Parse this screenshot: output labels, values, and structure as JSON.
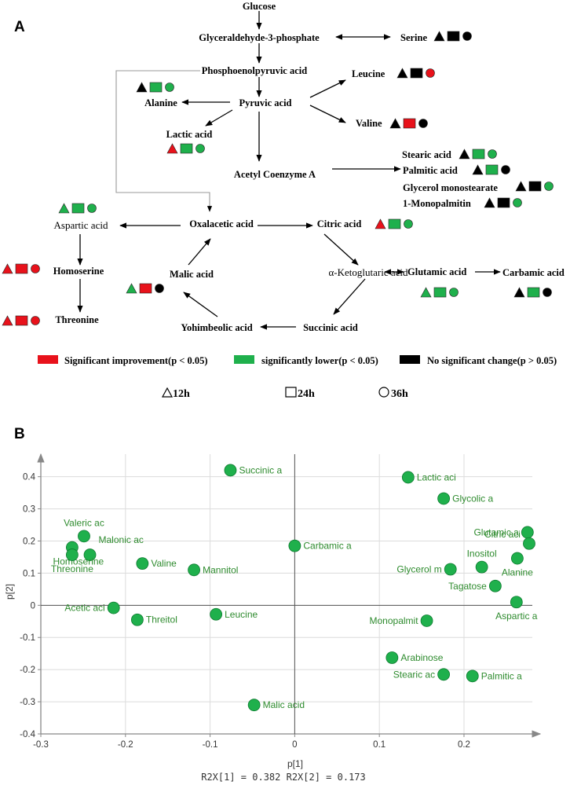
{
  "panel_a": {
    "label": "A",
    "nodes": {
      "glucose": "Glucose",
      "g3p": "Glyceraldehyde-3-phosphate",
      "pep": "Phosphoenolpyruvic acid",
      "pyruvic": "Pyruvic acid",
      "acetyl": "Acetyl Coenzyme A",
      "oxaloacetic": "Oxalacetic acid",
      "citric": "Citric acid",
      "akg": "α-Ketoglutaric acid",
      "succinic": "Succinic acid",
      "yohimbeolic": "Yohimbeolic acid",
      "malic": "Malic acid",
      "aspartic": "Aspartic acid",
      "homoserine": "Homoserine",
      "threonine": "Threonine",
      "serine": "Serine",
      "leucine": "Leucine",
      "valine": "Valine",
      "alanine": "Alanine",
      "lactic": "Lactic acid",
      "stearic": "Stearic acid",
      "palmitic": "Palmitic acid",
      "glycerol": "Glycerol monostearate",
      "monopalmitin": "1-Monopalmitin",
      "glutamic": "Glutamic acid",
      "carbamic": "Carbamic acid"
    },
    "colors": {
      "red": "#e8121b",
      "green": "#1fb04c",
      "black": "#000000"
    },
    "markers": {
      "serine": [
        "black",
        "black",
        "black"
      ],
      "leucine": [
        "black",
        "black",
        "red"
      ],
      "valine": [
        "black",
        "red",
        "black"
      ],
      "alanine": [
        "black",
        "green",
        "green"
      ],
      "lactic": [
        "red",
        "green",
        "green"
      ],
      "stearic": [
        "black",
        "green",
        "green"
      ],
      "palmitic": [
        "black",
        "green",
        "black"
      ],
      "glycerol": [
        "black",
        "black",
        "green"
      ],
      "monopalmitin": [
        "black",
        "black",
        "green"
      ],
      "aspartic": [
        "green",
        "green",
        "green"
      ],
      "citric": [
        "red",
        "green",
        "green"
      ],
      "homoserine": [
        "red",
        "red",
        "red"
      ],
      "threonine": [
        "red",
        "red",
        "red"
      ],
      "malic": [
        "green",
        "red",
        "black"
      ],
      "glutamic": [
        "green",
        "green",
        "green"
      ],
      "carbamic": [
        "black",
        "green",
        "black"
      ]
    },
    "legend": {
      "improve": "Significant improvement(p < 0.05)",
      "lower": "significantly lower(p < 0.05)",
      "nochange": "No significant change(p > 0.05)",
      "t12": "12h",
      "t24": "24h",
      "t36": "36h"
    }
  },
  "panel_b": {
    "label": "B",
    "chart_data": {
      "type": "scatter",
      "xlabel": "p[1]",
      "ylabel": "p[2]",
      "footer": "R2X[1] = 0.382 R2X[2] = 0.173",
      "xlim": [
        -0.3,
        0.29
      ],
      "ylim": [
        -0.4,
        0.47
      ],
      "xticks": [
        -0.3,
        -0.2,
        -0.1,
        0,
        0.1,
        0.2
      ],
      "xtick_labels": [
        "-0.3",
        "-0.2",
        "-0.1",
        "0",
        "0.1",
        "0.2"
      ],
      "yticks": [
        -0.4,
        -0.3,
        -0.2,
        -0.1,
        0,
        0.1,
        0.2,
        0.3,
        0.4
      ],
      "ytick_labels": [
        "-0.4",
        "-0.3",
        "-0.2",
        "-0.1",
        "0",
        "0.1",
        "0.2",
        "0.3",
        "0.4"
      ],
      "point_color": "#1fb04c",
      "label_color": "#2e8b2e",
      "points": [
        {
          "label": "Succinic a",
          "x": -0.076,
          "y": 0.42,
          "side": "right"
        },
        {
          "label": "Lactic aci",
          "x": 0.134,
          "y": 0.398,
          "side": "right"
        },
        {
          "label": "Glycolic a",
          "x": 0.176,
          "y": 0.332,
          "side": "right"
        },
        {
          "label": "Valeric ac",
          "x": -0.249,
          "y": 0.215,
          "side": "above"
        },
        {
          "label": "Malonic ac",
          "x": -0.242,
          "y": 0.157,
          "side": "right-up"
        },
        {
          "label": "Homoserine",
          "x": -0.263,
          "y": 0.18,
          "side": "below-right"
        },
        {
          "label": "Threonine",
          "x": -0.263,
          "y": 0.157,
          "side": "below"
        },
        {
          "label": "Valine",
          "x": -0.18,
          "y": 0.13,
          "side": "right"
        },
        {
          "label": "Mannitol",
          "x": -0.119,
          "y": 0.11,
          "side": "right"
        },
        {
          "label": "Carbamic a",
          "x": 0.0,
          "y": 0.185,
          "side": "right"
        },
        {
          "label": "Glutamic a",
          "x": 0.275,
          "y": 0.227,
          "side": "left"
        },
        {
          "label": "Citric aci",
          "x": 0.277,
          "y": 0.192,
          "side": "left-up"
        },
        {
          "label": "Inositol",
          "x": 0.221,
          "y": 0.119,
          "side": "above"
        },
        {
          "label": "Glycerol m",
          "x": 0.184,
          "y": 0.112,
          "side": "left"
        },
        {
          "label": "Alanine",
          "x": 0.263,
          "y": 0.146,
          "side": "below"
        },
        {
          "label": "Tagatose",
          "x": 0.237,
          "y": 0.06,
          "side": "left"
        },
        {
          "label": "Aspartic a",
          "x": 0.262,
          "y": 0.01,
          "side": "below"
        },
        {
          "label": "Acetic aci",
          "x": -0.214,
          "y": -0.008,
          "side": "left"
        },
        {
          "label": "Threitol",
          "x": -0.186,
          "y": -0.045,
          "side": "right"
        },
        {
          "label": "Leucine",
          "x": -0.093,
          "y": -0.028,
          "side": "right"
        },
        {
          "label": "Monopalmit",
          "x": 0.156,
          "y": -0.048,
          "side": "left"
        },
        {
          "label": "Arabinose",
          "x": 0.115,
          "y": -0.163,
          "side": "right"
        },
        {
          "label": "Stearic ac",
          "x": 0.176,
          "y": -0.215,
          "side": "left"
        },
        {
          "label": "Palmitic a",
          "x": 0.21,
          "y": -0.22,
          "side": "right"
        },
        {
          "label": "Malic acid",
          "x": -0.048,
          "y": -0.31,
          "side": "right"
        }
      ]
    }
  }
}
